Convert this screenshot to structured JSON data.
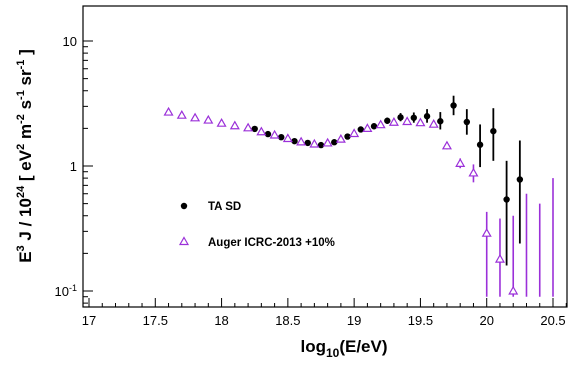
{
  "chart_data": {
    "type": "scatter",
    "xlabel": "log10(E/eV)",
    "ylabel": "E3 J / 1024 [ eV2 m-2 s-1 sr-1 ]",
    "xlim": [
      17.0,
      20.6
    ],
    "ylim": [
      0.09,
      20
    ],
    "yscale": "log",
    "grid": false,
    "legend_position": "center-left",
    "x_ticks": [
      {
        "value": 17.0,
        "label": "17"
      },
      {
        "value": 17.5,
        "label": "17.5"
      },
      {
        "value": 18.0,
        "label": "18"
      },
      {
        "value": 18.5,
        "label": "18.5"
      },
      {
        "value": 19.0,
        "label": "19"
      },
      {
        "value": 19.5,
        "label": "19.5"
      },
      {
        "value": 20.0,
        "label": "20"
      },
      {
        "value": 20.5,
        "label": "20.5"
      }
    ],
    "y_ticks": [
      {
        "value": 0.1,
        "label_base": "10",
        "label_sup": "-1"
      },
      {
        "value": 1,
        "label_base": "1",
        "label_sup": ""
      },
      {
        "value": 10,
        "label_base": "10",
        "label_sup": ""
      }
    ],
    "series": [
      {
        "name": "TA SD",
        "marker": "filled-circle",
        "color": "#000000",
        "points": [
          {
            "x": 18.25,
            "y": 1.98,
            "lo": 1.94,
            "hi": 2.02
          },
          {
            "x": 18.35,
            "y": 1.8,
            "lo": 1.76,
            "hi": 1.84
          },
          {
            "x": 18.45,
            "y": 1.7,
            "lo": 1.66,
            "hi": 1.74
          },
          {
            "x": 18.55,
            "y": 1.58,
            "lo": 1.54,
            "hi": 1.62
          },
          {
            "x": 18.65,
            "y": 1.53,
            "lo": 1.49,
            "hi": 1.57
          },
          {
            "x": 18.75,
            "y": 1.47,
            "lo": 1.43,
            "hi": 1.51
          },
          {
            "x": 18.85,
            "y": 1.55,
            "lo": 1.51,
            "hi": 1.6
          },
          {
            "x": 18.95,
            "y": 1.72,
            "lo": 1.67,
            "hi": 1.78
          },
          {
            "x": 19.05,
            "y": 1.96,
            "lo": 1.9,
            "hi": 2.04
          },
          {
            "x": 19.15,
            "y": 2.08,
            "lo": 2.0,
            "hi": 2.18
          },
          {
            "x": 19.25,
            "y": 2.3,
            "lo": 2.18,
            "hi": 2.44
          },
          {
            "x": 19.35,
            "y": 2.45,
            "lo": 2.28,
            "hi": 2.65
          },
          {
            "x": 19.45,
            "y": 2.43,
            "lo": 2.22,
            "hi": 2.68
          },
          {
            "x": 19.55,
            "y": 2.5,
            "lo": 2.22,
            "hi": 2.85
          },
          {
            "x": 19.65,
            "y": 2.28,
            "lo": 1.96,
            "hi": 2.7
          },
          {
            "x": 19.75,
            "y": 3.05,
            "lo": 2.55,
            "hi": 3.65
          },
          {
            "x": 19.85,
            "y": 2.25,
            "lo": 1.78,
            "hi": 2.85
          },
          {
            "x": 19.95,
            "y": 1.48,
            "lo": 0.98,
            "hi": 2.15
          },
          {
            "x": 20.05,
            "y": 1.9,
            "lo": 1.1,
            "hi": 2.9
          },
          {
            "x": 20.15,
            "y": 0.54,
            "lo": 0.16,
            "hi": 1.1
          },
          {
            "x": 20.25,
            "y": 0.78,
            "lo": 0.24,
            "hi": 1.6
          }
        ]
      },
      {
        "name": "Auger ICRC-2013 +10%",
        "marker": "open-triangle",
        "color": "#9b30d9",
        "points": [
          {
            "x": 17.6,
            "y": 2.7
          },
          {
            "x": 17.7,
            "y": 2.55
          },
          {
            "x": 17.8,
            "y": 2.43
          },
          {
            "x": 17.9,
            "y": 2.33
          },
          {
            "x": 18.0,
            "y": 2.2
          },
          {
            "x": 18.1,
            "y": 2.1
          },
          {
            "x": 18.2,
            "y": 2.02
          },
          {
            "x": 18.3,
            "y": 1.88
          },
          {
            "x": 18.4,
            "y": 1.77
          },
          {
            "x": 18.5,
            "y": 1.66
          },
          {
            "x": 18.6,
            "y": 1.56
          },
          {
            "x": 18.7,
            "y": 1.5
          },
          {
            "x": 18.8,
            "y": 1.53
          },
          {
            "x": 18.9,
            "y": 1.64
          },
          {
            "x": 19.0,
            "y": 1.82
          },
          {
            "x": 19.1,
            "y": 2.0
          },
          {
            "x": 19.2,
            "y": 2.14
          },
          {
            "x": 19.3,
            "y": 2.24
          },
          {
            "x": 19.4,
            "y": 2.27
          },
          {
            "x": 19.5,
            "y": 2.22
          },
          {
            "x": 19.6,
            "y": 2.16
          },
          {
            "x": 19.7,
            "y": 1.45,
            "lo": 1.36,
            "hi": 1.55
          },
          {
            "x": 19.8,
            "y": 1.05,
            "lo": 0.96,
            "hi": 1.15
          },
          {
            "x": 19.9,
            "y": 0.88,
            "lo": 0.74,
            "hi": 1.03
          },
          {
            "x": 20.0,
            "y": 0.29,
            "lo": 0.09,
            "hi": 0.43
          },
          {
            "x": 20.1,
            "y": 0.18,
            "lo": 0.09,
            "hi": 0.38
          },
          {
            "x": 20.2,
            "y": 0.1,
            "lo": 0.09,
            "hi": 0.4
          },
          {
            "x": 20.3,
            "y": null,
            "lo": 0.09,
            "hi": 0.6
          },
          {
            "x": 20.4,
            "y": null,
            "lo": 0.09,
            "hi": 0.5
          },
          {
            "x": 20.5,
            "y": null,
            "lo": 0.09,
            "hi": 0.8
          }
        ]
      }
    ]
  }
}
